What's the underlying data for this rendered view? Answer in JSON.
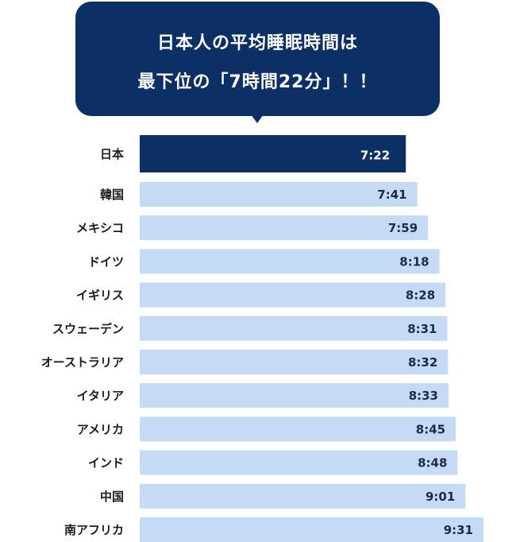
{
  "callout": {
    "line1": "日本人の平均睡眠時間は",
    "line2": "最下位の「7時間22分」！！"
  },
  "colors": {
    "highlight": "#0c2f66",
    "bar": "#c5daf5",
    "highlight_text": "#ffffff",
    "bar_text": "#1f2a44"
  },
  "chart_data": {
    "type": "bar",
    "orientation": "horizontal",
    "unit": "hours:minutes",
    "categories": [
      "日本",
      "韓国",
      "メキシコ",
      "ドイツ",
      "イギリス",
      "スウェーデン",
      "オーストラリア",
      "イタリア",
      "アメリカ",
      "インド",
      "中国",
      "南アフリカ"
    ],
    "labels": [
      "7:22",
      "7:41",
      "7:59",
      "8:18",
      "8:28",
      "8:31",
      "8:32",
      "8:33",
      "8:45",
      "8:48",
      "9:01",
      "9:31"
    ],
    "values": [
      442,
      461,
      479,
      498,
      508,
      511,
      512,
      513,
      525,
      528,
      541,
      571
    ],
    "highlight_index": 0,
    "title": "",
    "xlabel": "",
    "ylabel": "",
    "xlim": [
      0,
      571
    ],
    "grid": false,
    "legend": "none"
  }
}
